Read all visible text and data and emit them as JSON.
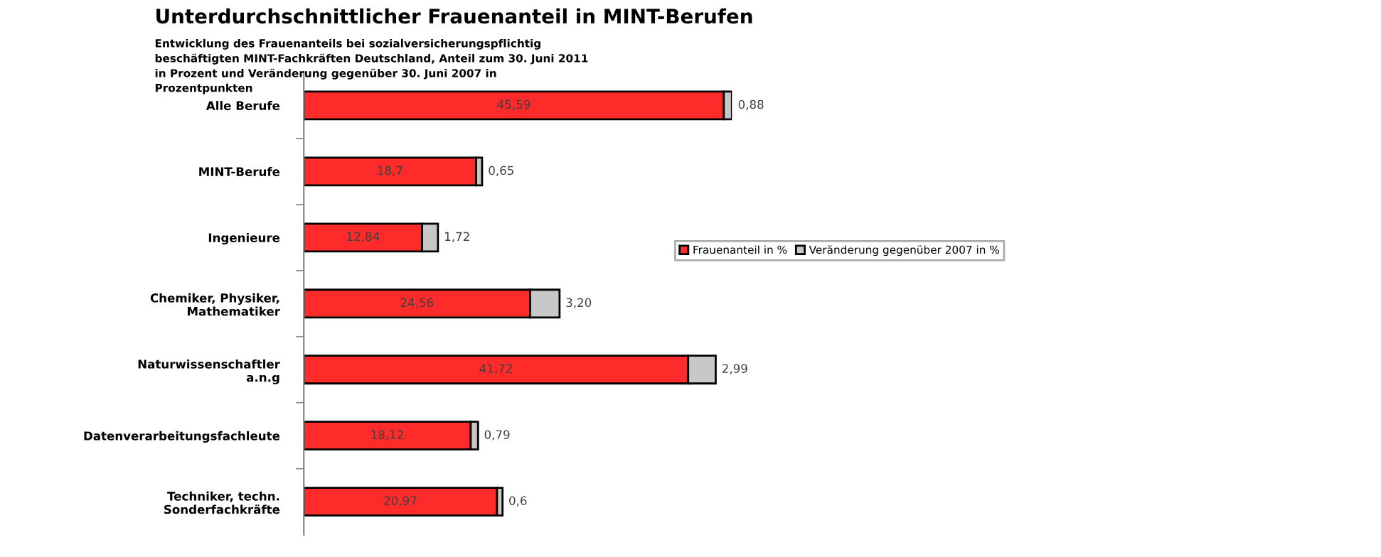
{
  "chart_data": {
    "type": "bar",
    "orientation": "horizontal",
    "stacked": true,
    "title": "Unterdurchschnittlicher Frauenanteil in MINT-Berufen",
    "subtitle": "Entwicklung des Frauenanteils bei sozialversicherungspflichtig\nbeschäftigten MINT-Fachkräften Deutschland, Anteil zum 30. Juni 2011\nin Prozent und Veränderung gegenüber 30. Juni 2007 in\nProzentpunkten",
    "categories": [
      "Alle Berufe",
      "MINT-Berufe",
      "Ingenieure",
      "Chemiker, Physiker,\nMathematiker",
      "Naturwissenschaftler\na.n.g",
      "Datenverarbeitungsfachleute",
      "Techniker, techn.\nSonderfachkräfte"
    ],
    "series": [
      {
        "name": "Frauenanteil in %",
        "color": "#ff2a2a",
        "values": [
          45.59,
          18.7,
          12.84,
          24.56,
          41.72,
          18.12,
          20.97
        ],
        "value_labels": [
          "45,59",
          "18,7",
          "12,84",
          "24,56",
          "41,72",
          "18,12",
          "20,97"
        ]
      },
      {
        "name": "Veränderung gegenüber 2007 in %",
        "color": "#c8c8c8",
        "values": [
          0.88,
          0.65,
          1.72,
          3.2,
          2.99,
          0.79,
          0.6
        ],
        "value_labels": [
          "0,88",
          "0,65",
          "1,72",
          "3,20",
          "2,99",
          "0,79",
          "0,6"
        ]
      }
    ],
    "legend": "right",
    "grid": false
  }
}
